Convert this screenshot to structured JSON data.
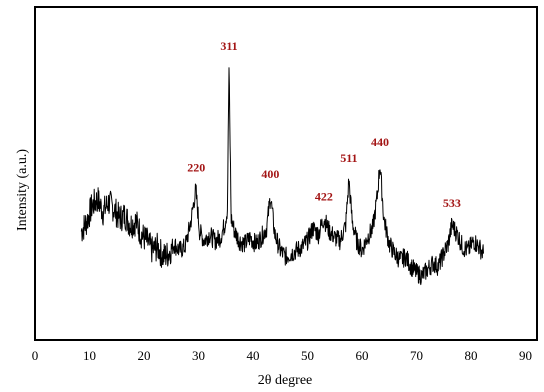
{
  "chart_data": {
    "type": "line",
    "title": "",
    "xlabel": "2θ degree",
    "ylabel": "Intensity (a.u.)",
    "xlim": [
      0,
      90
    ],
    "xticks": [
      0,
      10,
      20,
      30,
      40,
      50,
      60,
      70,
      80,
      90
    ],
    "y_axis_ticks_shown": false,
    "grid": false,
    "legend": "none",
    "colors": {
      "line": "#000000",
      "peak_label": "#a31515",
      "frame": "#000000"
    },
    "series": [
      {
        "x": [
          8.5,
          9.5,
          10.5,
          11.5,
          12.5,
          13.5,
          14.5,
          15.5,
          16.5,
          17.5,
          18.5,
          19.5,
          20.5,
          21.5,
          22.5,
          23.5,
          24.5,
          25.5,
          26.5,
          27.5,
          28.5,
          29.5,
          30.2,
          31.0,
          32.0,
          33.0,
          34.0,
          34.8,
          35.3,
          35.6,
          36.0,
          36.6,
          37.5,
          38.5,
          39.5,
          40.5,
          41.5,
          42.5,
          43.2,
          44.0,
          45.0,
          46.0,
          47.0,
          48.0,
          49.0,
          50.0,
          51.0,
          52.0,
          53.0,
          54.0,
          55.0,
          56.0,
          57.0,
          57.6,
          58.2,
          59.0,
          60.0,
          61.0,
          62.0,
          62.8,
          63.3,
          64.0,
          65.0,
          66.0,
          67.0,
          68.0,
          69.0,
          70.0,
          71.0,
          72.0,
          73.0,
          74.0,
          75.0,
          75.8,
          76.5,
          77.5,
          78.5,
          79.5,
          80.5,
          81.5,
          82.3
        ],
        "y": [
          34,
          37,
          42,
          44,
          40,
          43,
          41,
          38,
          39,
          36,
          37,
          33,
          31,
          28,
          29,
          26,
          27,
          30,
          28,
          29,
          36,
          47,
          34,
          31,
          33,
          31,
          32,
          36,
          41,
          85,
          38,
          34,
          31,
          30,
          32,
          30,
          32,
          35,
          45,
          33,
          28,
          26,
          27,
          28,
          29,
          31,
          35,
          33,
          38,
          34,
          32,
          31,
          36,
          50,
          37,
          31,
          28,
          32,
          35,
          45,
          55,
          38,
          30,
          27,
          25,
          26,
          23,
          21,
          20,
          22,
          24,
          23,
          27,
          30,
          36,
          33,
          29,
          28,
          31,
          29,
          27
        ]
      }
    ],
    "annotations": [
      {
        "x": 29.6,
        "y": 47,
        "text": "220"
      },
      {
        "x": 35.6,
        "y": 85,
        "text": "311"
      },
      {
        "x": 43.2,
        "y": 45,
        "text": "400"
      },
      {
        "x": 53.0,
        "y": 38,
        "text": "422"
      },
      {
        "x": 57.6,
        "y": 50,
        "text": "511"
      },
      {
        "x": 63.3,
        "y": 55,
        "text": "440"
      },
      {
        "x": 76.5,
        "y": 36,
        "text": "533"
      }
    ]
  }
}
